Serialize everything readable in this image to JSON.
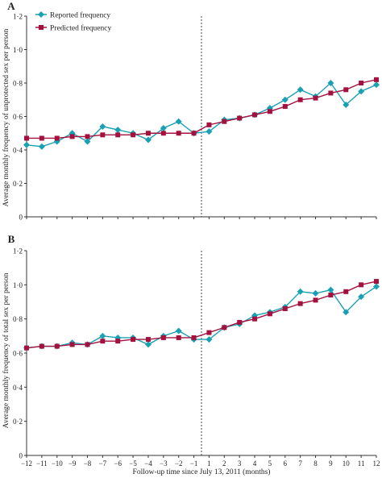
{
  "figure": {
    "xlabel": "Follow-up time since July 13, 2011 (months)",
    "colors": {
      "reported": "#1aa0b4",
      "predicted": "#a3123f",
      "axis": "#333333"
    },
    "legend": {
      "reported": "Reported frequency",
      "predicted": "Predicted frequency"
    }
  },
  "chart_data": [
    {
      "type": "line",
      "panel_label": "A",
      "ylabel": "Average monthly frequency of unprotected sex per person",
      "xlabel": "",
      "x": [
        -12,
        -11,
        -10,
        -9,
        -8,
        -7,
        -6,
        -5,
        -4,
        -3,
        -2,
        -1,
        1,
        2,
        3,
        4,
        5,
        6,
        7,
        8,
        9,
        10,
        11,
        12
      ],
      "xticks": [
        "−12",
        "−11",
        "−10",
        "−9",
        "−8",
        "−7",
        "−6",
        "−5",
        "−4",
        "−3",
        "−2",
        "−1",
        "1",
        "2",
        "3",
        "4",
        "5",
        "6",
        "7",
        "8",
        "9",
        "10",
        "11",
        "12"
      ],
      "ylim": [
        0,
        1.2
      ],
      "yticks": [
        "0",
        "0·2",
        "0·4",
        "0·6",
        "0·8",
        "1·0",
        "1·2"
      ],
      "series": [
        {
          "name": "Reported frequency",
          "marker": "diamond",
          "values": [
            0.43,
            0.42,
            0.45,
            0.5,
            0.45,
            0.54,
            0.52,
            0.5,
            0.46,
            0.53,
            0.57,
            0.5,
            0.51,
            0.58,
            0.59,
            0.61,
            0.65,
            0.7,
            0.76,
            0.72,
            0.8,
            0.67,
            0.75,
            0.79
          ]
        },
        {
          "name": "Predicted frequency",
          "marker": "square",
          "values": [
            0.47,
            0.47,
            0.47,
            0.48,
            0.48,
            0.49,
            0.49,
            0.49,
            0.5,
            0.5,
            0.5,
            0.5,
            0.55,
            0.57,
            0.59,
            0.61,
            0.63,
            0.66,
            0.7,
            0.71,
            0.74,
            0.76,
            0.8,
            0.82
          ]
        }
      ],
      "reference_line": {
        "x": 0,
        "style": "dotted"
      },
      "legend_position": "top-left"
    },
    {
      "type": "line",
      "panel_label": "B",
      "ylabel": "Average monthly frequency of total sex per person",
      "xlabel": "Follow-up time since July 13, 2011 (months)",
      "x": [
        -12,
        -11,
        -10,
        -9,
        -8,
        -7,
        -6,
        -5,
        -4,
        -3,
        -2,
        -1,
        1,
        2,
        3,
        4,
        5,
        6,
        7,
        8,
        9,
        10,
        11,
        12
      ],
      "xticks": [
        "−12",
        "−11",
        "−10",
        "−9",
        "−8",
        "−7",
        "−6",
        "−5",
        "−4",
        "−3",
        "−2",
        "−1",
        "1",
        "2",
        "3",
        "4",
        "5",
        "6",
        "7",
        "8",
        "9",
        "10",
        "11",
        "12"
      ],
      "ylim": [
        0,
        1.2
      ],
      "yticks": [
        "0",
        "0·2",
        "0·4",
        "0·6",
        "0·8",
        "1·0",
        "1·2"
      ],
      "series": [
        {
          "name": "Reported frequency",
          "marker": "diamond",
          "values": [
            0.63,
            0.64,
            0.64,
            0.66,
            0.65,
            0.7,
            0.69,
            0.69,
            0.65,
            0.7,
            0.73,
            0.68,
            0.68,
            0.75,
            0.77,
            0.82,
            0.84,
            0.87,
            0.96,
            0.95,
            0.97,
            0.84,
            0.93,
            0.99
          ]
        },
        {
          "name": "Predicted frequency",
          "marker": "square",
          "values": [
            0.63,
            0.64,
            0.64,
            0.65,
            0.65,
            0.67,
            0.67,
            0.68,
            0.68,
            0.69,
            0.69,
            0.69,
            0.72,
            0.75,
            0.78,
            0.8,
            0.83,
            0.86,
            0.89,
            0.91,
            0.94,
            0.96,
            1.0,
            1.02
          ]
        }
      ],
      "reference_line": {
        "x": 0,
        "style": "dotted"
      },
      "legend_position": "none"
    }
  ]
}
